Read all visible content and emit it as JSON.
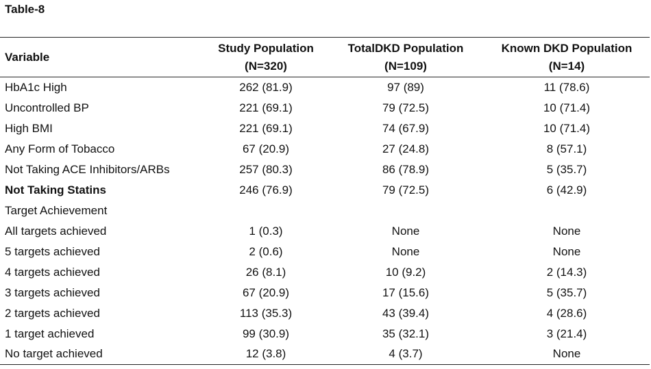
{
  "title": "Table-8",
  "table": {
    "headers": {
      "variable": "Variable",
      "study": "Study Population",
      "study_n": "(N=320)",
      "total_dkd": "TotalDKD Population",
      "total_dkd_n": "(N=109)",
      "known_dkd": "Known DKD Population",
      "known_dkd_n": "(N=14)"
    },
    "rows": [
      {
        "variable": "HbA1c High",
        "study": "262 (81.9)",
        "total": "97 (89)",
        "known": "11 (78.6)"
      },
      {
        "variable": "Uncontrolled BP",
        "study": "221 (69.1)",
        "total": "79 (72.5)",
        "known": "10 (71.4)"
      },
      {
        "variable": "High BMI",
        "study": "221 (69.1)",
        "total": "74 (67.9)",
        "known": "10 (71.4)"
      },
      {
        "variable": "Any Form of Tobacco",
        "study": "67 (20.9)",
        "total": "27 (24.8)",
        "known": "8 (57.1)"
      },
      {
        "variable": "Not Taking ACE Inhibitors/ARBs",
        "study": "257 (80.3)",
        "total": "86 (78.9)",
        "known": "5 (35.7)"
      },
      {
        "variable": "Not Taking Statins",
        "study": "246 (76.9)",
        "total": "79 (72.5)",
        "known": "6 (42.9)"
      },
      {
        "variable": "Target Achievement",
        "study": "",
        "total": "",
        "known": ""
      },
      {
        "variable": "All targets achieved",
        "study": "1 (0.3)",
        "total": "None",
        "known": "None"
      },
      {
        "variable": "5 targets achieved",
        "study": "2 (0.6)",
        "total": "None",
        "known": "None"
      },
      {
        "variable": "4 targets achieved",
        "study": "26 (8.1)",
        "total": "10 (9.2)",
        "known": "2 (14.3)"
      },
      {
        "variable": "3 targets achieved",
        "study": "67 (20.9)",
        "total": "17 (15.6)",
        "known": "5 (35.7)"
      },
      {
        "variable": "2 targets achieved",
        "study": "113 (35.3)",
        "total": "43 (39.4)",
        "known": "4 (28.6)"
      },
      {
        "variable": "1 target achieved",
        "study": "99 (30.9)",
        "total": "35 (32.1)",
        "known": "3 (21.4)"
      },
      {
        "variable": "No target achieved",
        "study": "12 (3.8)",
        "total": "4 (3.7)",
        "known": "None"
      }
    ]
  }
}
